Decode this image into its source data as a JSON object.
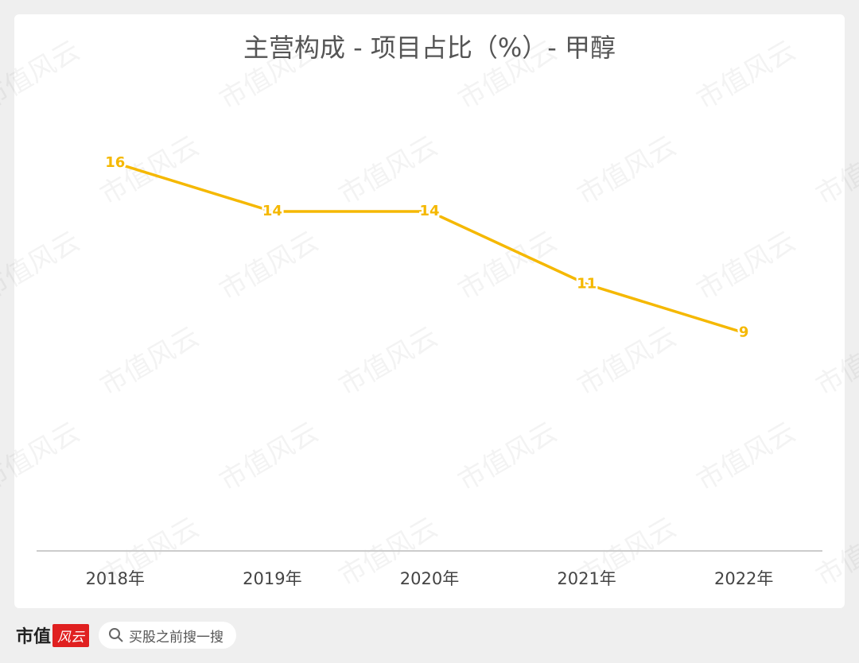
{
  "chart_data": {
    "type": "line",
    "title": "主营构成 - 项目占比（%）- 甲醇",
    "categories": [
      "2018年",
      "2019年",
      "2020年",
      "2021年",
      "2022年"
    ],
    "values": [
      16,
      14,
      14,
      11,
      9
    ],
    "color": "#f5b800",
    "ylim": [
      0,
      20
    ]
  },
  "watermark": "市值风云",
  "footer": {
    "brand": "市值",
    "brand_script": "风云",
    "search": "买股之前搜一搜"
  }
}
